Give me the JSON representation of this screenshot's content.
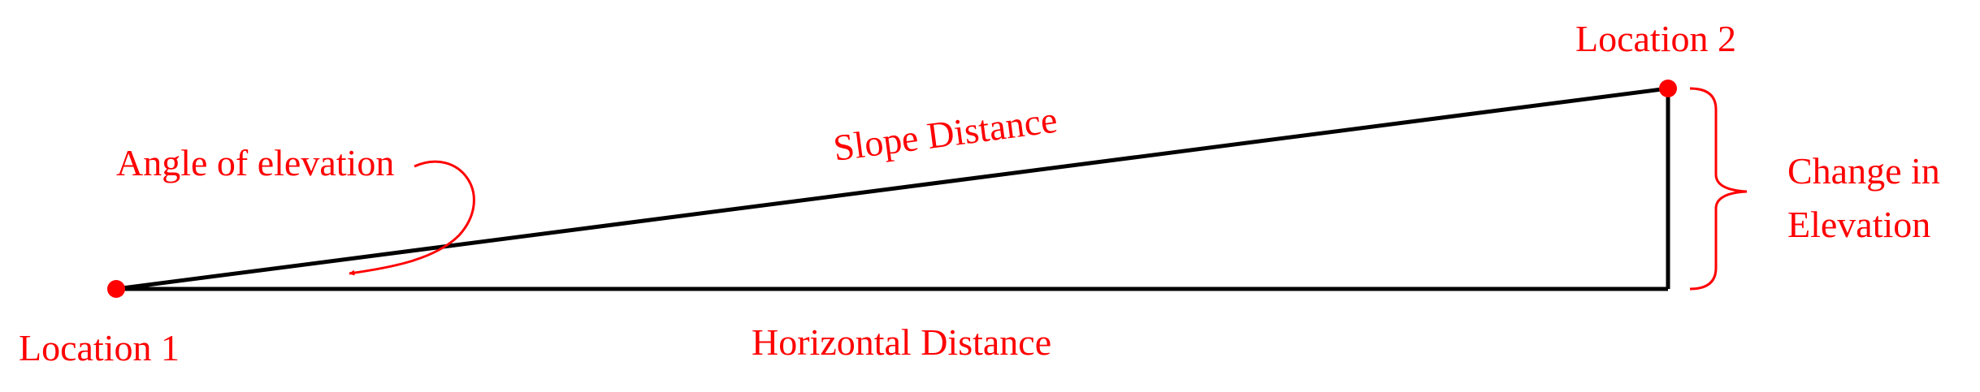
{
  "colors": {
    "line": "#000000",
    "accent": "#ff0000"
  },
  "labels": {
    "location_1": "Location 1",
    "location_2": "Location 2",
    "slope_distance": "Slope Distance",
    "horizontal_distance": "Horizontal Distance",
    "angle_of_elevation": "Angle of elevation",
    "change_in": "Change in",
    "elevation": "Elevation"
  }
}
